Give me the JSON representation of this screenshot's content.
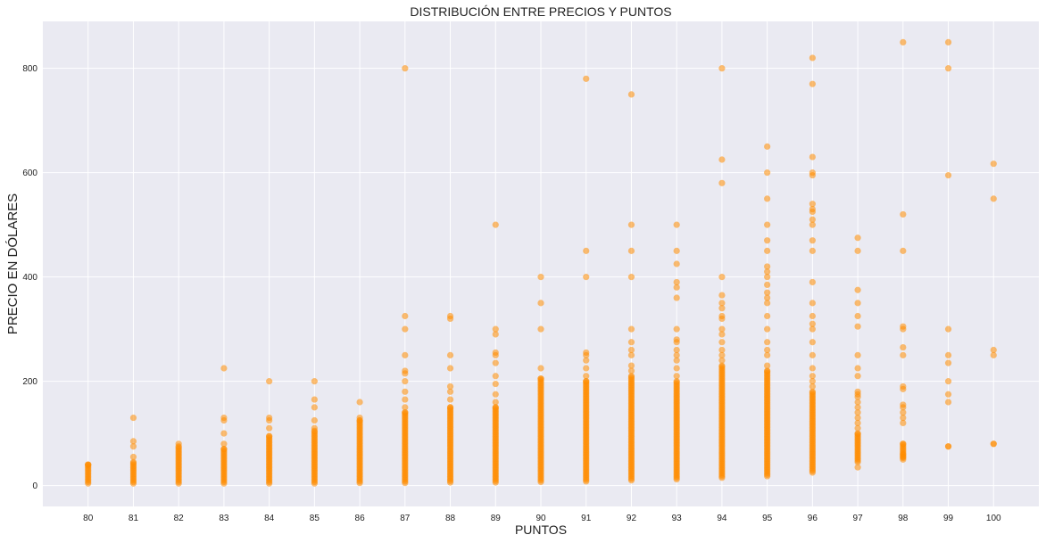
{
  "chart_data": {
    "type": "scatter",
    "title": "DISTRIBUCIÓN ENTRE PRECIOS Y PUNTOS",
    "xlabel": "PUNTOS",
    "ylabel": "PRECIO EN DÓLARES",
    "xlim": [
      79,
      101
    ],
    "ylim": [
      -40,
      890
    ],
    "x_ticks": [
      80,
      81,
      82,
      83,
      84,
      85,
      86,
      87,
      88,
      89,
      90,
      91,
      92,
      93,
      94,
      95,
      96,
      97,
      98,
      99,
      100
    ],
    "y_ticks": [
      0,
      200,
      400,
      600,
      800
    ],
    "grid": true,
    "background": "#EAEAF2",
    "grid_color": "#FFFFFF",
    "marker_color": "#FF8C00",
    "marker_alpha": 0.55,
    "dense_ranges": [
      {
        "x": 80,
        "min": 4,
        "max": 40
      },
      {
        "x": 81,
        "min": 4,
        "max": 45
      },
      {
        "x": 82,
        "min": 4,
        "max": 75
      },
      {
        "x": 83,
        "min": 4,
        "max": 70
      },
      {
        "x": 84,
        "min": 4,
        "max": 95
      },
      {
        "x": 85,
        "min": 4,
        "max": 105
      },
      {
        "x": 86,
        "min": 5,
        "max": 125
      },
      {
        "x": 87,
        "min": 5,
        "max": 140
      },
      {
        "x": 88,
        "min": 6,
        "max": 150
      },
      {
        "x": 89,
        "min": 6,
        "max": 150
      },
      {
        "x": 90,
        "min": 7,
        "max": 205
      },
      {
        "x": 91,
        "min": 8,
        "max": 200
      },
      {
        "x": 92,
        "min": 10,
        "max": 210
      },
      {
        "x": 93,
        "min": 12,
        "max": 200
      },
      {
        "x": 94,
        "min": 15,
        "max": 230
      },
      {
        "x": 95,
        "min": 18,
        "max": 220
      },
      {
        "x": 96,
        "min": 25,
        "max": 180
      },
      {
        "x": 97,
        "min": 45,
        "max": 100
      },
      {
        "x": 98,
        "min": 50,
        "max": 80
      },
      {
        "x": 99,
        "min": 75,
        "max": 75
      },
      {
        "x": 100,
        "min": 80,
        "max": 80
      }
    ],
    "outliers": [
      {
        "x": 80,
        "y": [
          40
        ]
      },
      {
        "x": 81,
        "y": [
          55,
          75,
          85,
          130
        ]
      },
      {
        "x": 82,
        "y": [
          80
        ]
      },
      {
        "x": 83,
        "y": [
          80,
          100,
          125,
          130,
          225
        ]
      },
      {
        "x": 84,
        "y": [
          110,
          125,
          130,
          200
        ]
      },
      {
        "x": 85,
        "y": [
          110,
          125,
          150,
          165,
          200
        ]
      },
      {
        "x": 86,
        "y": [
          130,
          160
        ]
      },
      {
        "x": 87,
        "y": [
          150,
          165,
          180,
          200,
          215,
          220,
          250,
          300,
          325,
          800
        ]
      },
      {
        "x": 88,
        "y": [
          165,
          180,
          190,
          225,
          250,
          320,
          325
        ]
      },
      {
        "x": 89,
        "y": [
          160,
          175,
          195,
          210,
          235,
          250,
          255,
          290,
          300,
          500
        ]
      },
      {
        "x": 90,
        "y": [
          225,
          300,
          350,
          400
        ]
      },
      {
        "x": 91,
        "y": [
          210,
          225,
          240,
          250,
          255,
          400,
          450,
          780
        ]
      },
      {
        "x": 92,
        "y": [
          220,
          230,
          250,
          260,
          275,
          300,
          400,
          450,
          500,
          750
        ]
      },
      {
        "x": 93,
        "y": [
          210,
          225,
          240,
          250,
          260,
          275,
          280,
          300,
          360,
          380,
          390,
          425,
          450,
          500
        ]
      },
      {
        "x": 94,
        "y": [
          240,
          250,
          260,
          275,
          290,
          300,
          320,
          325,
          340,
          350,
          365,
          400,
          580,
          625,
          800
        ]
      },
      {
        "x": 95,
        "y": [
          230,
          250,
          260,
          275,
          300,
          325,
          350,
          360,
          370,
          385,
          400,
          410,
          420,
          450,
          470,
          500,
          550,
          600,
          650
        ]
      },
      {
        "x": 96,
        "y": [
          190,
          200,
          210,
          225,
          250,
          275,
          300,
          310,
          325,
          350,
          390,
          450,
          470,
          500,
          510,
          525,
          530,
          540,
          595,
          600,
          630,
          770,
          820
        ]
      },
      {
        "x": 97,
        "y": [
          35,
          110,
          120,
          130,
          140,
          150,
          160,
          170,
          175,
          180,
          210,
          225,
          250,
          305,
          325,
          350,
          375,
          450,
          475
        ]
      },
      {
        "x": 98,
        "y": [
          55,
          60,
          120,
          130,
          140,
          150,
          155,
          185,
          190,
          250,
          265,
          300,
          305,
          450,
          520,
          850
        ]
      },
      {
        "x": 99,
        "y": [
          160,
          175,
          200,
          235,
          250,
          300,
          595,
          800,
          850
        ]
      },
      {
        "x": 100,
        "y": [
          250,
          260,
          550,
          617
        ]
      }
    ]
  }
}
